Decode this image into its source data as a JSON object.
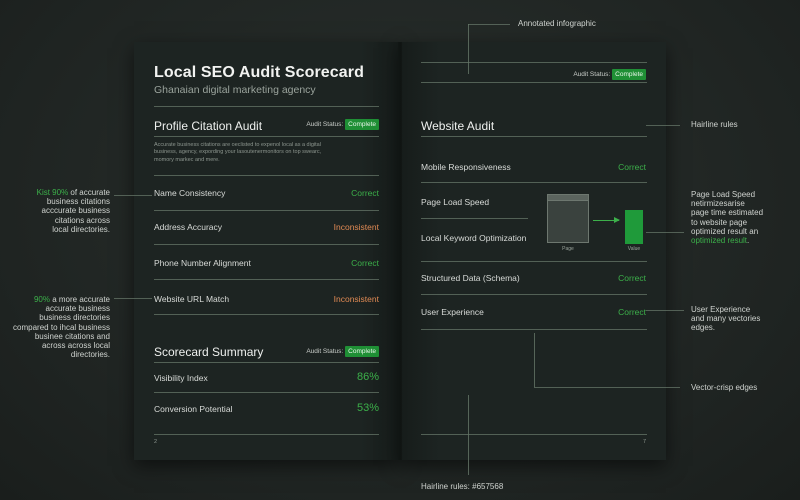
{
  "annotations": {
    "top": "Annotated infographic",
    "hairline": "Hairline rules",
    "pls": [
      "Page Load Speed",
      "netirmizesarise",
      "page time estimated",
      "to website page",
      "optimized result an"
    ],
    "pls_green": "optimized result",
    "ux": [
      "User Experience",
      "and many vectories",
      "edges."
    ],
    "vector": "Vector-crisp edges",
    "bottom": "Hairline rules: #657568",
    "left1_green": "Kist 90%",
    "left1_first": " of accurate",
    "left1": [
      "business citations",
      "acccurate business",
      "citations across",
      "local directories."
    ],
    "left2_green": "90%",
    "left2_first": " a more accurate",
    "left2": [
      "accurate business",
      "business directories",
      "compared to ihcal business",
      "businee citations and",
      "across across local",
      "directories."
    ]
  },
  "left_page": {
    "title": "Local SEO Audit Scorecard",
    "subtitle": "Ghanaian digital marketing agency",
    "section1": "Profile Citation Audit",
    "audit_label": "Audit Status:",
    "audit_badge": "Complete",
    "paragraph": [
      "Accurate business citations are oeclisted to expenol local as a digital",
      "business, agency, expording your lasoutenermonitors on top swearc,",
      "momory markec and mere."
    ],
    "rows": [
      {
        "label": "Name Consistency",
        "status": "Correct"
      },
      {
        "label": "Address Accuracy",
        "status": "Inconsistent"
      },
      {
        "label": "Phone Number Alignment",
        "status": "Correct"
      },
      {
        "label": "Website URL Match",
        "status": "Inconsistent"
      }
    ],
    "section2": "Scorecard Summary",
    "summary": [
      {
        "label": "Visibility Index",
        "value": "86%"
      },
      {
        "label": "Conversion Potential",
        "value": "53%"
      }
    ],
    "page_number": "2"
  },
  "right_page": {
    "audit_label": "Audit Status:",
    "audit_badge": "Complete",
    "section": "Website Audit",
    "rows": [
      {
        "label": "Mobile Responsiveness",
        "status": "Correct"
      },
      {
        "label": "Page Load Speed",
        "status": ""
      },
      {
        "label": "Local Keyword Optimization",
        "status": ""
      },
      {
        "label": "Structured Data (Schema)",
        "status": "Correct"
      },
      {
        "label": "User Experience",
        "status": "Correct"
      }
    ],
    "graphic": {
      "page_label": "Page",
      "value_label": "Value"
    },
    "page_number": "7"
  },
  "colors": {
    "accent": "#3cb04a",
    "warning": "#e08a54",
    "rule": "#657568",
    "badge": "#1f8f35"
  }
}
